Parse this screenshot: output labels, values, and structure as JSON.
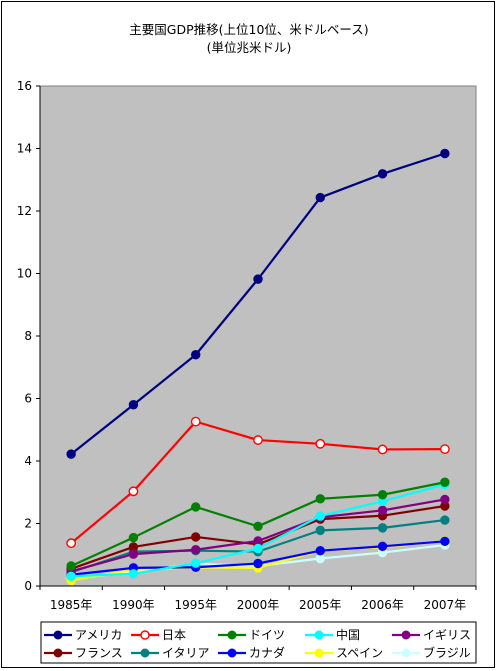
{
  "chart_data": {
    "type": "line",
    "title": "主要国GDP推移(上位10位、米ドルベース)",
    "subtitle": "(単位兆米ドル)",
    "xlabel": "",
    "ylabel": "",
    "categories": [
      "1985年",
      "1990年",
      "1995年",
      "2000年",
      "2005年",
      "2006年",
      "2007年"
    ],
    "ylim": [
      0,
      16
    ],
    "yticks": [
      0,
      2,
      4,
      6,
      8,
      10,
      12,
      14,
      16
    ],
    "grid": false,
    "legend": "bottom",
    "series": [
      {
        "name": "アメリカ",
        "color": "#000080",
        "marker": "filled",
        "values": [
          4.22,
          5.8,
          7.4,
          9.82,
          12.43,
          13.19,
          13.84
        ]
      },
      {
        "name": "日本",
        "color": "#ff0000",
        "marker": "open",
        "values": [
          1.37,
          3.03,
          5.26,
          4.67,
          4.55,
          4.37,
          4.38
        ]
      },
      {
        "name": "ドイツ",
        "color": "#008000",
        "marker": "filled",
        "values": [
          0.64,
          1.55,
          2.53,
          1.91,
          2.79,
          2.92,
          3.32
        ]
      },
      {
        "name": "中国",
        "color": "#00ffff",
        "marker": "filled",
        "values": [
          0.31,
          0.39,
          0.73,
          1.2,
          2.24,
          2.71,
          3.25
        ]
      },
      {
        "name": "イギリス",
        "color": "#800080",
        "marker": "filled",
        "values": [
          0.47,
          1.02,
          1.16,
          1.44,
          2.2,
          2.42,
          2.77
        ]
      },
      {
        "name": "フランス",
        "color": "#800000",
        "marker": "filled",
        "values": [
          0.55,
          1.25,
          1.57,
          1.33,
          2.14,
          2.25,
          2.56
        ]
      },
      {
        "name": "イタリア",
        "color": "#008080",
        "marker": "filled",
        "values": [
          0.44,
          1.1,
          1.13,
          1.1,
          1.78,
          1.86,
          2.11
        ]
      },
      {
        "name": "カナダ",
        "color": "#0000ff",
        "marker": "filled",
        "values": [
          0.36,
          0.58,
          0.6,
          0.72,
          1.13,
          1.27,
          1.43
        ]
      },
      {
        "name": "スペイン",
        "color": "#ffff00",
        "marker": "filled",
        "values": [
          0.18,
          0.52,
          0.59,
          0.58,
          1.13,
          1.24,
          1.44
        ]
      },
      {
        "name": "ブラジル",
        "color": "#ccffff",
        "marker": "filled",
        "values": [
          0.22,
          0.46,
          0.71,
          0.64,
          0.88,
          1.07,
          1.31
        ]
      }
    ]
  }
}
